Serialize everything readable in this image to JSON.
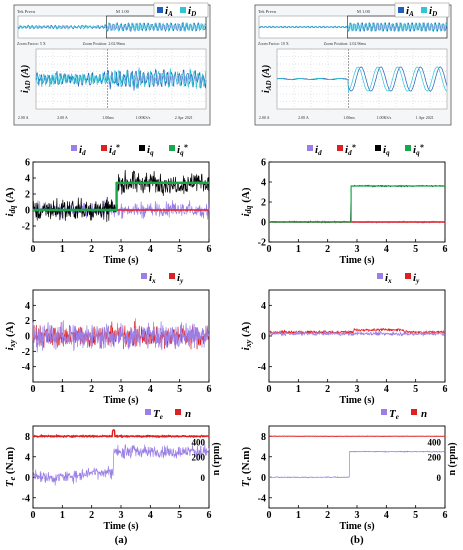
{
  "figure": {
    "panel_labels": [
      "(a)",
      "(b)"
    ],
    "colors": {
      "scope_bg": "#ffffff",
      "scope_grid": "#9aa6b2",
      "iA": "#1f5fbf",
      "iD": "#31c6d4",
      "id": "#9b7fe6",
      "id_ref": "#e02020",
      "iq": "#000000",
      "iq_ref": "#17a84a",
      "ix": "#9b7fe6",
      "iy": "#e02020",
      "Te": "#9b7fe6",
      "n": "#e02020"
    },
    "scope_text": {
      "left": {
        "header_left": "Tek Prevu",
        "header_mid": "M 1.00",
        "info_left": "Zoom Factor: 5 X",
        "info_mid": "Zoom Position: 2.02.96ms",
        "footer": [
          "2.00 A",
          "2.00 A",
          "1.00ms",
          "1.00KS/s",
          "2 Apr 2021"
        ]
      },
      "right": {
        "header_left": "Tek Prevu",
        "header_mid": "M 1.00",
        "info_left": "Zoom Factor: 10 X",
        "info_mid": "Zoom Position: 2.02.96ms",
        "footer": [
          "2.00 A",
          "2.00 A",
          "1.00ms",
          "1.00KS/s",
          "1 Apr 2021"
        ]
      }
    },
    "scope_ylabel": "iAD (A)"
  },
  "chart_data": [
    {
      "panel": "a",
      "type": "line",
      "kind": "scope",
      "series": [
        {
          "name": "iA"
        },
        {
          "name": "iD"
        }
      ],
      "ylabel": "iAD (A)",
      "note": "oscilloscope capture: noisy phase currents, amplitude grows after the step"
    },
    {
      "panel": "b",
      "type": "line",
      "kind": "scope",
      "series": [
        {
          "name": "iA"
        },
        {
          "name": "iD"
        }
      ],
      "ylabel": "iAD (A)",
      "note": "oscilloscope capture: clean sinusoidal phase currents appear after the step"
    },
    {
      "panel": "a",
      "type": "line",
      "legend": [
        "id",
        "id*",
        "iq",
        "iq*"
      ],
      "xlabel": "Time (s)",
      "ylabel": "idq (A)",
      "xlim": [
        0,
        6
      ],
      "ylim": [
        -4,
        6
      ],
      "xticks": [
        0,
        1,
        2,
        3,
        4,
        5,
        6
      ],
      "yticks": [
        -2,
        0,
        2,
        4,
        6
      ],
      "step_time": 2.85,
      "series": [
        {
          "name": "id",
          "before": 0.0,
          "after": 0.0,
          "noise": 1.4
        },
        {
          "name": "id*",
          "before": 0.0,
          "after": 0.0,
          "noise": 0
        },
        {
          "name": "iq",
          "before": 0.0,
          "after": 3.4,
          "noise": 2.0
        },
        {
          "name": "iq*",
          "before": 0.0,
          "after": 3.4,
          "noise": 0
        }
      ]
    },
    {
      "panel": "b",
      "type": "line",
      "legend": [
        "id",
        "id*",
        "iq",
        "iq*"
      ],
      "xlabel": "Time (s)",
      "ylabel": "idq (A)",
      "xlim": [
        0,
        6
      ],
      "ylim": [
        -2,
        6
      ],
      "xticks": [
        0,
        1,
        2,
        3,
        4,
        5,
        6
      ],
      "yticks": [
        -2,
        0,
        2,
        4,
        6
      ],
      "step_time": 2.8,
      "series": [
        {
          "name": "id",
          "before": 0.0,
          "after": 0.0,
          "noise": 0.15
        },
        {
          "name": "id*",
          "before": 0.0,
          "after": 0.0,
          "noise": 0
        },
        {
          "name": "iq",
          "before": 0.0,
          "after": 3.6,
          "noise": 0.12
        },
        {
          "name": "iq*",
          "before": 0.0,
          "after": 3.6,
          "noise": 0
        }
      ]
    },
    {
      "panel": "a",
      "type": "line",
      "legend": [
        "ix",
        "iy"
      ],
      "xlabel": "Time (s)",
      "ylabel": "ixy (A)",
      "xlim": [
        0,
        6
      ],
      "ylim": [
        -6,
        6
      ],
      "xticks": [
        0,
        1,
        2,
        3,
        4,
        5,
        6
      ],
      "yticks": [
        -4,
        -2,
        0,
        2,
        4
      ],
      "series": [
        {
          "name": "ix",
          "mean": 0,
          "noise": 2.6
        },
        {
          "name": "iy",
          "mean": 0,
          "noise": 2.2
        }
      ]
    },
    {
      "panel": "b",
      "type": "line",
      "legend": [
        "ix",
        "iy"
      ],
      "xlabel": "Time (s)",
      "ylabel": "ixy (A)",
      "xlim": [
        0,
        6
      ],
      "ylim": [
        -6,
        6
      ],
      "xticks": [
        0,
        1,
        2,
        3,
        4,
        5,
        6
      ],
      "yticks": [
        -4,
        0,
        4
      ],
      "series": [
        {
          "name": "ix",
          "mean": 0.3,
          "noise": 0.35
        },
        {
          "name": "iy",
          "mean": 0.5,
          "noise": 0.3
        }
      ]
    },
    {
      "panel": "a",
      "type": "line",
      "legend": [
        "Te",
        "n"
      ],
      "xlabel": "Time (s)",
      "ylabel": "Te (N.m)",
      "y2label": "n (rpm)",
      "xlim": [
        0,
        6
      ],
      "ylim": [
        -6,
        10
      ],
      "xticks": [
        0,
        1,
        2,
        3,
        4,
        5,
        6
      ],
      "yticks": [
        -4,
        0,
        4,
        8
      ],
      "y2ticks": [
        0,
        200,
        400
      ],
      "step_time": 2.75,
      "series": [
        {
          "name": "Te",
          "before": 0.5,
          "after": 5.0,
          "noise": 1.8
        },
        {
          "name": "n",
          "value": 8.0,
          "noise": 0.25,
          "axis": "y2",
          "rpm": 400
        }
      ]
    },
    {
      "panel": "b",
      "type": "line",
      "legend": [
        "Te",
        "n"
      ],
      "xlabel": "Time (s)",
      "ylabel": "Te (N.m)",
      "y2label": "n (rpm)",
      "xlim": [
        0,
        6
      ],
      "ylim": [
        -6,
        10
      ],
      "xticks": [
        0,
        1,
        2,
        3,
        4,
        5,
        6
      ],
      "yticks": [
        -4,
        0,
        4,
        8
      ],
      "y2ticks": [
        0,
        200,
        400
      ],
      "step_time": 2.75,
      "series": [
        {
          "name": "Te",
          "before": 0.0,
          "after": 5.0,
          "noise": 0.15
        },
        {
          "name": "n",
          "value": 8.0,
          "noise": 0.05,
          "axis": "y2",
          "rpm": 400
        }
      ]
    }
  ]
}
